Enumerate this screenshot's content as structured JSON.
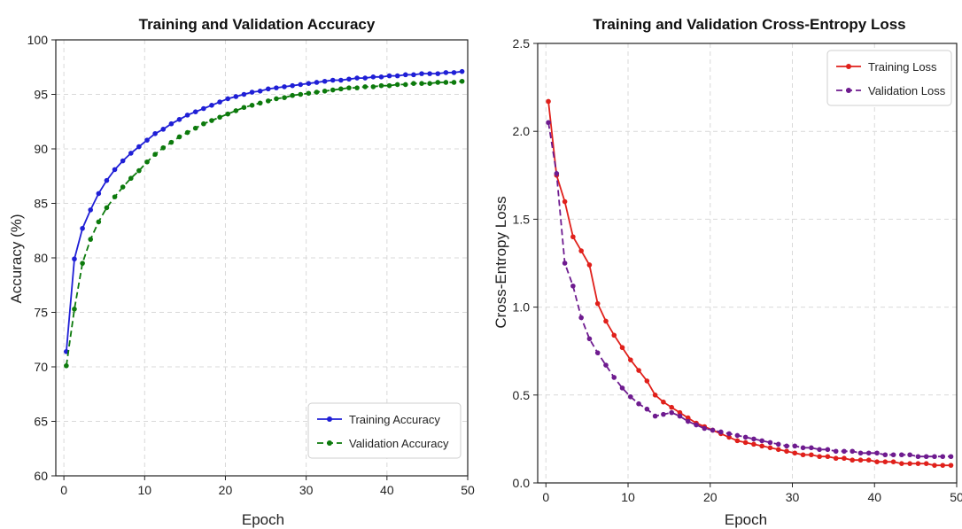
{
  "chart_data": [
    {
      "type": "line",
      "title": "Training and Validation Accuracy",
      "xlabel": "Epoch",
      "ylabel": "Accuracy (%)",
      "xlim": [
        -1,
        50
      ],
      "ylim": [
        60,
        100
      ],
      "xticks": [
        0,
        10,
        20,
        30,
        40,
        50
      ],
      "yticks": [
        60,
        65,
        70,
        75,
        80,
        85,
        90,
        95,
        100
      ],
      "grid": true,
      "legend_position": "bottom-right",
      "series": [
        {
          "name": "Training Accuracy",
          "color": "#1f1fd6",
          "line_style": "solid",
          "x": [
            0.3,
            1.3,
            2.3,
            3.3,
            4.3,
            5.3,
            6.3,
            7.3,
            8.3,
            9.3,
            10.3,
            11.3,
            12.3,
            13.3,
            14.3,
            15.3,
            16.3,
            17.3,
            18.3,
            19.3,
            20.3,
            21.3,
            22.3,
            23.3,
            24.3,
            25.3,
            26.3,
            27.3,
            28.3,
            29.3,
            30.3,
            31.3,
            32.3,
            33.3,
            34.3,
            35.3,
            36.3,
            37.3,
            38.3,
            39.3,
            40.3,
            41.3,
            42.3,
            43.3,
            44.3,
            45.3,
            46.3,
            47.3,
            48.3,
            49.3
          ],
          "y": [
            71.4,
            79.9,
            82.7,
            84.4,
            85.9,
            87.1,
            88.1,
            88.9,
            89.6,
            90.2,
            90.8,
            91.4,
            91.8,
            92.3,
            92.7,
            93.1,
            93.4,
            93.7,
            94.0,
            94.3,
            94.6,
            94.8,
            95.0,
            95.2,
            95.3,
            95.5,
            95.6,
            95.7,
            95.8,
            95.9,
            96.0,
            96.1,
            96.2,
            96.3,
            96.3,
            96.4,
            96.5,
            96.5,
            96.6,
            96.6,
            96.7,
            96.7,
            96.8,
            96.8,
            96.9,
            96.9,
            96.9,
            97.0,
            97.0,
            97.1
          ]
        },
        {
          "name": "Validation Accuracy",
          "color": "#0c7a0c",
          "line_style": "dashed",
          "x": [
            0.3,
            1.3,
            2.3,
            3.3,
            4.3,
            5.3,
            6.3,
            7.3,
            8.3,
            9.3,
            10.3,
            11.3,
            12.3,
            13.3,
            14.3,
            15.3,
            16.3,
            17.3,
            18.3,
            19.3,
            20.3,
            21.3,
            22.3,
            23.3,
            24.3,
            25.3,
            26.3,
            27.3,
            28.3,
            29.3,
            30.3,
            31.3,
            32.3,
            33.3,
            34.3,
            35.3,
            36.3,
            37.3,
            38.3,
            39.3,
            40.3,
            41.3,
            42.3,
            43.3,
            44.3,
            45.3,
            46.3,
            47.3,
            48.3,
            49.3
          ],
          "y": [
            70.1,
            75.3,
            79.5,
            81.7,
            83.3,
            84.6,
            85.6,
            86.5,
            87.3,
            88.0,
            88.8,
            89.5,
            90.1,
            90.6,
            91.1,
            91.5,
            91.9,
            92.3,
            92.6,
            92.9,
            93.2,
            93.5,
            93.8,
            94.0,
            94.2,
            94.4,
            94.6,
            94.7,
            94.9,
            95.0,
            95.1,
            95.2,
            95.3,
            95.4,
            95.5,
            95.6,
            95.6,
            95.7,
            95.7,
            95.8,
            95.8,
            95.9,
            95.9,
            96.0,
            96.0,
            96.0,
            96.1,
            96.1,
            96.1,
            96.2
          ]
        }
      ]
    },
    {
      "type": "line",
      "title": "Training and Validation Cross-Entropy Loss",
      "xlabel": "Epoch",
      "ylabel": "Cross-Entropy Loss",
      "xlim": [
        -1,
        50
      ],
      "ylim": [
        0.0,
        2.5
      ],
      "xticks": [
        0,
        10,
        20,
        30,
        40,
        50
      ],
      "yticks": [
        0.0,
        0.5,
        1.0,
        1.5,
        2.0,
        2.5
      ],
      "grid": true,
      "legend_position": "top-right",
      "series": [
        {
          "name": "Training Loss",
          "color": "#e0201b",
          "line_style": "solid",
          "x": [
            0.3,
            1.3,
            2.3,
            3.3,
            4.3,
            5.3,
            6.3,
            7.3,
            8.3,
            9.3,
            10.3,
            11.3,
            12.3,
            13.3,
            14.3,
            15.3,
            16.3,
            17.3,
            18.3,
            19.3,
            20.3,
            21.3,
            22.3,
            23.3,
            24.3,
            25.3,
            26.3,
            27.3,
            28.3,
            29.3,
            30.3,
            31.3,
            32.3,
            33.3,
            34.3,
            35.3,
            36.3,
            37.3,
            38.3,
            39.3,
            40.3,
            41.3,
            42.3,
            43.3,
            44.3,
            45.3,
            46.3,
            47.3,
            48.3,
            49.3
          ],
          "y": [
            2.17,
            1.75,
            1.6,
            1.4,
            1.32,
            1.24,
            1.02,
            0.92,
            0.84,
            0.77,
            0.7,
            0.64,
            0.58,
            0.5,
            0.46,
            0.43,
            0.4,
            0.37,
            0.34,
            0.32,
            0.3,
            0.28,
            0.26,
            0.24,
            0.23,
            0.22,
            0.21,
            0.2,
            0.19,
            0.18,
            0.17,
            0.16,
            0.16,
            0.15,
            0.15,
            0.14,
            0.14,
            0.13,
            0.13,
            0.13,
            0.12,
            0.12,
            0.12,
            0.11,
            0.11,
            0.11,
            0.11,
            0.1,
            0.1,
            0.1
          ]
        },
        {
          "name": "Validation Loss",
          "color": "#6e1b8f",
          "line_style": "dashed",
          "x": [
            0.3,
            1.3,
            2.3,
            3.3,
            4.3,
            5.3,
            6.3,
            7.3,
            8.3,
            9.3,
            10.3,
            11.3,
            12.3,
            13.3,
            14.3,
            15.3,
            16.3,
            17.3,
            18.3,
            19.3,
            20.3,
            21.3,
            22.3,
            23.3,
            24.3,
            25.3,
            26.3,
            27.3,
            28.3,
            29.3,
            30.3,
            31.3,
            32.3,
            33.3,
            34.3,
            35.3,
            36.3,
            37.3,
            38.3,
            39.3,
            40.3,
            41.3,
            42.3,
            43.3,
            44.3,
            45.3,
            46.3,
            47.3,
            48.3,
            49.3
          ],
          "y": [
            2.05,
            1.76,
            1.25,
            1.12,
            0.94,
            0.82,
            0.74,
            0.67,
            0.6,
            0.54,
            0.49,
            0.45,
            0.42,
            0.38,
            0.39,
            0.4,
            0.38,
            0.35,
            0.33,
            0.31,
            0.3,
            0.29,
            0.28,
            0.27,
            0.26,
            0.25,
            0.24,
            0.23,
            0.22,
            0.21,
            0.21,
            0.2,
            0.2,
            0.19,
            0.19,
            0.18,
            0.18,
            0.18,
            0.17,
            0.17,
            0.17,
            0.16,
            0.16,
            0.16,
            0.16,
            0.15,
            0.15,
            0.15,
            0.15,
            0.15
          ]
        }
      ]
    }
  ]
}
